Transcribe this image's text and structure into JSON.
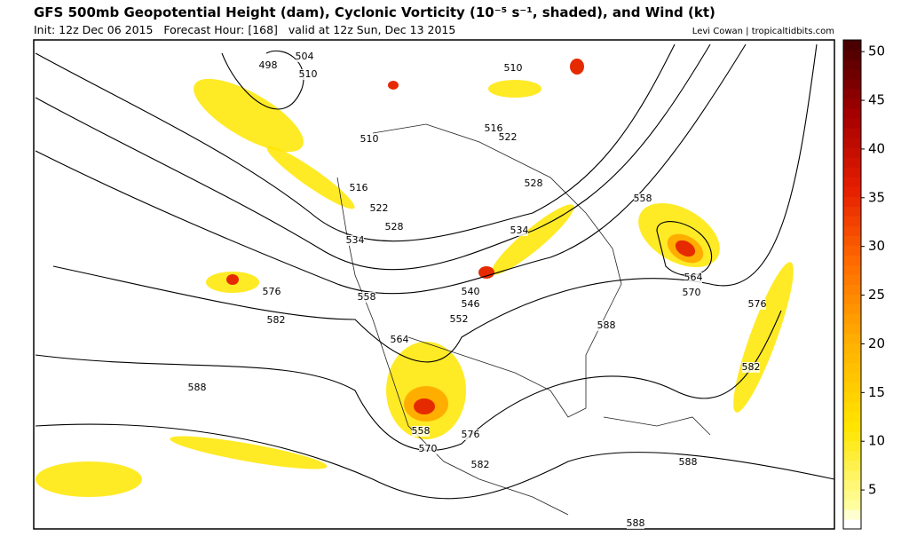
{
  "header": {
    "title": "GFS 500mb Geopotential Height (dam), Cyclonic Vorticity (10⁻⁵ s⁻¹, shaded), and Wind (kt)",
    "init": "Init: 12z Dec 06 2015   Forecast Hour: [168]   valid at 12z Sun, Dec 13 2015",
    "credit": "Levi Cowan | tropicaltidbits.com"
  },
  "colorbar": {
    "lim": [
      1,
      51.2
    ],
    "ticks": [
      5,
      10,
      15,
      20,
      25,
      30,
      35,
      40,
      45,
      50
    ]
  },
  "contour_labels": [
    498,
    504,
    510,
    510,
    510,
    516,
    522,
    516,
    522,
    528,
    534,
    528,
    534,
    558,
    564,
    570,
    576,
    576,
    582,
    588,
    558,
    540,
    546,
    552,
    564,
    558,
    570,
    576,
    582,
    588,
    582,
    588,
    588
  ]
}
